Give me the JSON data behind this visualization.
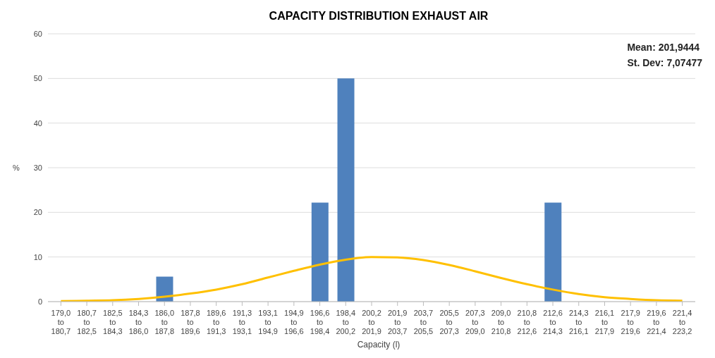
{
  "chart_data": {
    "type": "bar",
    "title": "CAPACITY DISTRIBUTION EXHAUST AIR",
    "xlabel": "Capacity (l)",
    "ylabel": "%",
    "categories": [
      "179,0 to 180,7",
      "180,7 to 182,5",
      "182,5 to 184,3",
      "184,3 to 186,0",
      "186,0 to 187,8",
      "187,8 to 189,6",
      "189,6 to 191,3",
      "191,3 to 193,1",
      "193,1 to 194,9",
      "194,9 to 196,6",
      "196,6 to 198,4",
      "198,4 to 200,2",
      "200,2 to 201,9",
      "201,9 to 203,7",
      "203,7 to 205,5",
      "205,5 to 207,3",
      "207,3 to 209,0",
      "209,0 to 210,8",
      "210,8 to 212,6",
      "212,6 to 214,3",
      "214,3 to 216,1",
      "216,1 to 217,9",
      "217,9 to 219,6",
      "219,6 to 221,4",
      "221,4 to 223,2"
    ],
    "series": [
      {
        "color": "#4f81bd",
        "values": [
          0,
          0,
          0,
          0,
          5.6,
          0,
          0,
          0,
          0,
          0,
          22.2,
          50,
          0,
          0,
          0,
          0,
          0,
          0,
          0,
          22.2,
          0,
          0,
          0,
          0,
          0
        ]
      },
      {
        "type": "line",
        "color": "#ffc000",
        "marker": "none",
        "values": [
          0.1,
          0.2,
          0.3,
          0.6,
          1.1,
          1.8,
          2.7,
          3.9,
          5.4,
          6.9,
          8.3,
          9.4,
          10.0,
          9.9,
          9.3,
          8.2,
          6.8,
          5.3,
          3.9,
          2.7,
          1.7,
          1.0,
          0.6,
          0.3,
          0.2
        ]
      }
    ],
    "ylim": [
      0,
      60
    ],
    "yticks": [
      0,
      10,
      20,
      30,
      40,
      50,
      60
    ],
    "grid": "y",
    "annotations": [
      "Mean: 201,9444",
      "St. Dev: 7,07477"
    ]
  }
}
